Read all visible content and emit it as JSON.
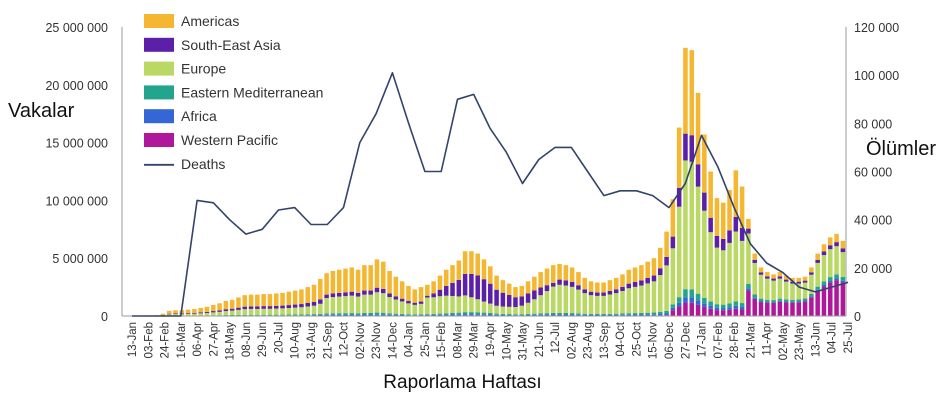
{
  "chart_data": {
    "type": "bar",
    "title": "",
    "xlabel": "Raporlama Haftası",
    "ylabel": "Vakalar",
    "y2label": "Ölümler",
    "ylim": [
      0,
      25000000
    ],
    "y2lim": [
      0,
      120000
    ],
    "yticks": [
      "0",
      "5 000 000",
      "10 000 000",
      "15 000 000",
      "20 000 000",
      "25 000 000"
    ],
    "y2ticks": [
      "0",
      "20 000",
      "40 000",
      "60 000",
      "80 000",
      "100 000",
      "120 000"
    ],
    "grid": false,
    "legend_position": "top-left",
    "tick_labels": [
      "13-Jan",
      "03-Feb",
      "24-Feb",
      "16-Mar",
      "06-Apr",
      "27-Apr",
      "18-May",
      "08-Jun",
      "29-Jun",
      "20-Jul",
      "10-Aug",
      "31-Aug",
      "21-Sep",
      "12-Oct",
      "02-Nov",
      "23-Nov",
      "14-Dec",
      "04-Jan",
      "25-Jan",
      "15-Feb",
      "08-Mar",
      "29-Mar",
      "19-Apr",
      "10-May",
      "31-May",
      "21-Jun",
      "12-Jul",
      "02-Aug",
      "23-Aug",
      "13-Sep",
      "04-Oct",
      "25-Oct",
      "15-Nov",
      "06-Dec",
      "27-Dec",
      "17-Jan",
      "07-Feb",
      "28-Feb",
      "21-Mar",
      "11-Apr",
      "02-May",
      "23-May",
      "13-Jun",
      "04-Jul",
      "25-Jul"
    ],
    "cases_total": [
      20000,
      20000,
      30000,
      40000,
      50000,
      80000,
      200000,
      450000,
      500000,
      500000,
      550000,
      600000,
      700000,
      800000,
      950000,
      1100000,
      1300000,
      1400000,
      1600000,
      1800000,
      1850000,
      1850000,
      1900000,
      1900000,
      1950000,
      2000000,
      2100000,
      2200000,
      2300000,
      2500000,
      2700000,
      3200000,
      3700000,
      3900000,
      4000000,
      4100000,
      4200000,
      4000000,
      4400000,
      4400000,
      4900000,
      4700000,
      3900000,
      3400000,
      3000000,
      2600000,
      2300000,
      2500000,
      2700000,
      3000000,
      3500000,
      4000000,
      4400000,
      4800000,
      5600000,
      5600000,
      5400000,
      4900000,
      4300000,
      3500000,
      3100000,
      2800000,
      2500000,
      2600000,
      3000000,
      3400000,
      3800000,
      4100000,
      4400000,
      4500000,
      4400000,
      4200000,
      3800000,
      3300000,
      3000000,
      2900000,
      2900000,
      3100000,
      3300000,
      3600000,
      4000000,
      4200000,
      4400000,
      4700000,
      5000000,
      5900000,
      7300000,
      10100000,
      16300000,
      23200000,
      23000000,
      19300000,
      15700000,
      12500000,
      10200000,
      9800000,
      10900000,
      12600000,
      11200000,
      8400000,
      5400000,
      4200000,
      3800000,
      3600000,
      3800000,
      3500000,
      3300000,
      3300000,
      3400000,
      4200000,
      5400000,
      6200000,
      6800000,
      7100000,
      6500000
    ],
    "cases_cumulative_by_region": {
      "wp": [
        0,
        0,
        0,
        0,
        0,
        0,
        0,
        0,
        0,
        0,
        0,
        0,
        0,
        0,
        0,
        0,
        0,
        0,
        0,
        0,
        0,
        0,
        0,
        0,
        0,
        0,
        0,
        0,
        0,
        0,
        0,
        0,
        0,
        0,
        0,
        0,
        0,
        0,
        0,
        0,
        0,
        0,
        0,
        0,
        0,
        0,
        0,
        0,
        0,
        0,
        0,
        0,
        0,
        0,
        0,
        0,
        0,
        0,
        0,
        0,
        0,
        0,
        0,
        0,
        0,
        0,
        0,
        0,
        0,
        0,
        0,
        0,
        0,
        0,
        0,
        0,
        0,
        0,
        0,
        0,
        0,
        0,
        0,
        0,
        0,
        0,
        0,
        0,
        0,
        0,
        0,
        0,
        0,
        0,
        0,
        0,
        0,
        0,
        0,
        0,
        0,
        0,
        0,
        0,
        0,
        0,
        0,
        0,
        0,
        0,
        0,
        0,
        0,
        0,
        0
      ]
    },
    "series": [
      {
        "name": "Americas",
        "color": "#f5b731"
      },
      {
        "name": "South-East Asia",
        "color": "#5b1fa8"
      },
      {
        "name": "Europe",
        "color": "#b9d864"
      },
      {
        "name": "Eastern Mediterranean",
        "color": "#22a58c"
      },
      {
        "name": "Africa",
        "color": "#3466d6"
      },
      {
        "name": "Western Pacific",
        "color": "#b0189c"
      },
      {
        "name": "Deaths",
        "color": "#33436b"
      }
    ],
    "deaths_by_tick": [
      0,
      0,
      0,
      0,
      48000,
      47000,
      40000,
      34000,
      36000,
      44000,
      45000,
      38000,
      38000,
      45000,
      72000,
      84000,
      101000,
      80000,
      60000,
      60000,
      90000,
      92000,
      78000,
      68000,
      55000,
      65000,
      70000,
      70000,
      60000,
      50000,
      52000,
      52000,
      50000,
      45000,
      55000,
      75000,
      62000,
      45000,
      30000,
      22000,
      18000,
      12000,
      10000,
      12000,
      14000
    ]
  }
}
